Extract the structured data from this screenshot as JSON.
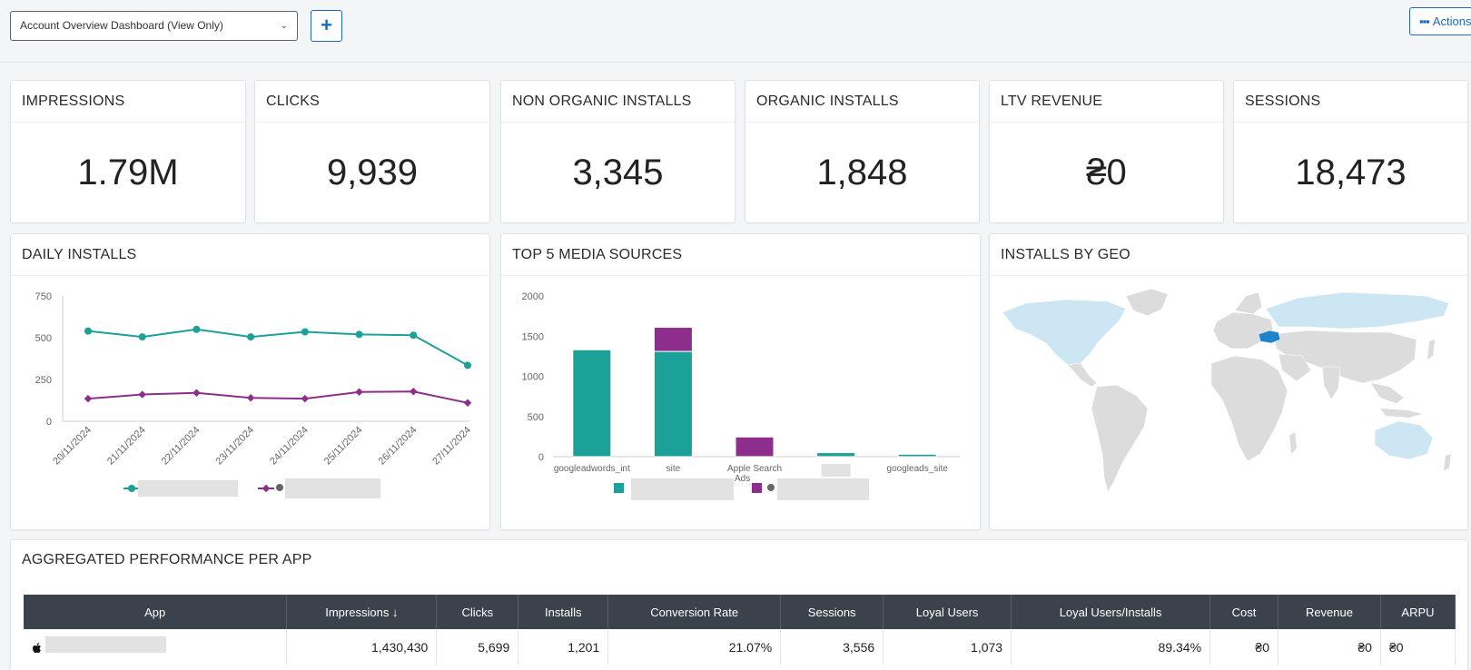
{
  "header": {
    "dashboard_select": "Account Overview Dashboard (View Only)",
    "add_label": "+",
    "actions_label": "Actions",
    "actions_dots": "▪▪▪"
  },
  "kpis": [
    {
      "title": "IMPRESSIONS",
      "value": "1.79M"
    },
    {
      "title": "CLICKS",
      "value": "9,939"
    },
    {
      "title": "NON ORGANIC INSTALLS",
      "value": "3,345"
    },
    {
      "title": "ORGANIC INSTALLS",
      "value": "1,848"
    },
    {
      "title": "LTV REVENUE",
      "value": "₴0"
    },
    {
      "title": "SESSIONS",
      "value": "18,473"
    }
  ],
  "daily_installs": {
    "title": "DAILY INSTALLS",
    "chart_data": {
      "type": "line",
      "x": [
        "20/11/2024",
        "21/11/2024",
        "22/11/2024",
        "23/11/2024",
        "24/11/2024",
        "25/11/2024",
        "26/11/2024",
        "27/11/2024"
      ],
      "ylim": [
        0,
        750
      ],
      "yticks": [
        0,
        250,
        500,
        750
      ],
      "series": [
        {
          "values": [
            540,
            505,
            550,
            505,
            535,
            520,
            515,
            335
          ],
          "color": "#1ba197"
        },
        {
          "values": [
            135,
            160,
            170,
            140,
            135,
            175,
            178,
            110
          ],
          "color": "#8e2e8c"
        }
      ],
      "grid": false
    }
  },
  "top_media": {
    "title": "TOP 5 MEDIA SOURCES",
    "chart_data": {
      "type": "bar",
      "stacked": true,
      "categories": [
        "googleadwords_int",
        "site",
        "Apple Search Ads",
        "",
        "googleads_site"
      ],
      "ylim": [
        0,
        2000
      ],
      "yticks": [
        0,
        500,
        1000,
        1500,
        2000
      ],
      "series": [
        {
          "values": [
            1330,
            1310,
            0,
            50,
            30
          ],
          "color": "#1ba197"
        },
        {
          "values": [
            0,
            300,
            245,
            0,
            0
          ],
          "color": "#8e2e8c"
        }
      ]
    }
  },
  "geo": {
    "title": "INSTALLS BY GEO",
    "colors": {
      "land": "#dcdcdc",
      "active": "#cde6f3",
      "highlight": "#1f83c9"
    }
  },
  "table": {
    "title": "AGGREGATED PERFORMANCE PER APP",
    "columns": [
      "App",
      "Impressions ↓",
      "Clicks",
      "Installs",
      "Conversion Rate",
      "Sessions",
      "Loyal Users",
      "Loyal Users/Installs",
      "Cost",
      "Revenue",
      "ARPU"
    ],
    "rows": [
      [
        "",
        "1,430,430",
        "5,699",
        "1,201",
        "21.07%",
        "3,556",
        "1,073",
        "89.34%",
        "₴0",
        "₴0",
        "₴0"
      ]
    ]
  }
}
